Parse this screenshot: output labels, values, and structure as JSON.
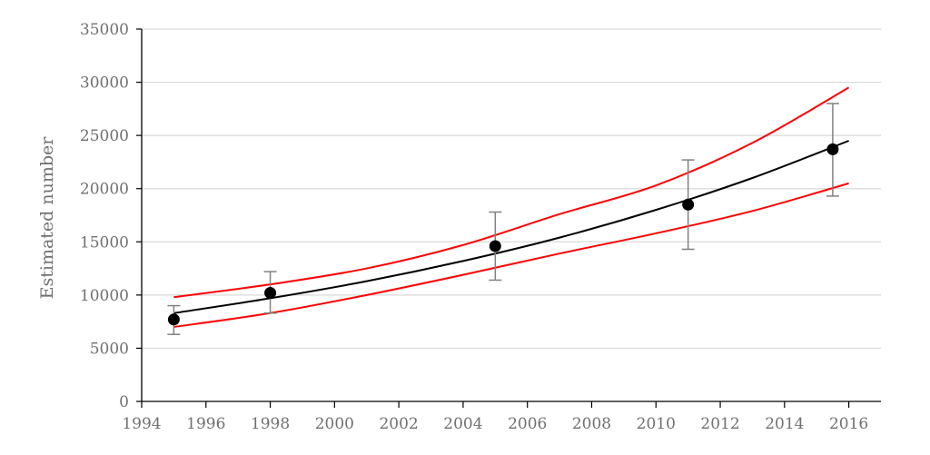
{
  "chart_data": {
    "type": "scatter",
    "title": "",
    "xlabel": "",
    "ylabel": "Estimated number",
    "xlim": [
      1994,
      2017
    ],
    "ylim": [
      0,
      35000
    ],
    "xticks": [
      1994,
      1996,
      1998,
      2000,
      2002,
      2004,
      2006,
      2008,
      2010,
      2012,
      2014,
      2016
    ],
    "yticks": [
      0,
      5000,
      10000,
      15000,
      20000,
      25000,
      30000,
      35000
    ],
    "grid": "horizontal",
    "colors": {
      "points": "#000000",
      "fit": "#000000",
      "bounds": "#ff0000",
      "errorbars": "#808080",
      "grid": "#d9d9d9",
      "axis": "#000000",
      "text": "#707070"
    },
    "series": [
      {
        "kind": "points_with_errorbars",
        "x": [
          1995,
          1998,
          2005,
          2011,
          2015.5
        ],
        "y": [
          7700,
          10200,
          14600,
          18500,
          23700
        ],
        "lower": [
          6300,
          8300,
          11400,
          14300,
          19300
        ],
        "upper": [
          9000,
          12200,
          17800,
          22700,
          28000
        ]
      },
      {
        "kind": "fitted_curve",
        "x": [
          1995,
          1998,
          2001,
          2004,
          2007,
          2010,
          2013,
          2016
        ],
        "y": [
          8300,
          9700,
          11300,
          13200,
          15400,
          18000,
          21000,
          24500
        ]
      },
      {
        "kind": "upper_bound",
        "x": [
          1995,
          1998,
          2001,
          2004,
          2007,
          2010,
          2013,
          2016
        ],
        "y": [
          9800,
          11000,
          12500,
          14700,
          17600,
          20300,
          24300,
          29500
        ]
      },
      {
        "kind": "lower_bound",
        "x": [
          1995,
          1998,
          2001,
          2004,
          2007,
          2010,
          2013,
          2016
        ],
        "y": [
          7000,
          8300,
          10000,
          11900,
          13900,
          15800,
          17900,
          20500
        ]
      }
    ]
  }
}
